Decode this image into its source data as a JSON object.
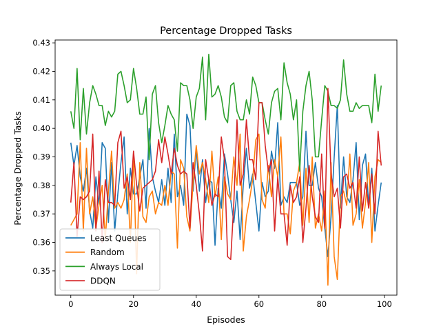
{
  "chart_data": {
    "type": "line",
    "title": "Percentage Dropped Tasks",
    "xlabel": "Episodes",
    "ylabel": "Percentage Dropped Tasks",
    "xlim": [
      -5,
      104
    ],
    "ylim": [
      0.3415,
      0.431
    ],
    "xticks": [
      0,
      20,
      40,
      60,
      80,
      100
    ],
    "yticks": [
      0.35,
      0.36,
      0.37,
      0.38,
      0.39,
      0.4,
      0.41,
      0.42,
      0.43
    ],
    "ytick_labels": [
      "0.35",
      "0.36",
      "0.37",
      "0.38",
      "0.39",
      "0.40",
      "0.41",
      "0.42",
      "0.43"
    ],
    "grid": false,
    "legend_position": "lower-left",
    "x": [
      0,
      1,
      2,
      3,
      4,
      5,
      6,
      7,
      8,
      9,
      10,
      11,
      12,
      13,
      14,
      15,
      16,
      17,
      18,
      19,
      20,
      21,
      22,
      23,
      24,
      25,
      26,
      27,
      28,
      29,
      30,
      31,
      32,
      33,
      34,
      35,
      36,
      37,
      38,
      39,
      40,
      41,
      42,
      43,
      44,
      45,
      46,
      47,
      48,
      49,
      50,
      51,
      52,
      53,
      54,
      55,
      56,
      57,
      58,
      59,
      60,
      61,
      62,
      63,
      64,
      65,
      66,
      67,
      68,
      69,
      70,
      71,
      72,
      73,
      74,
      75,
      76,
      77,
      78,
      79,
      80,
      81,
      82,
      83,
      84,
      85,
      86,
      87,
      88,
      89,
      90,
      91,
      92,
      93,
      94,
      95,
      96,
      97,
      98,
      99
    ],
    "series": [
      {
        "name": "Least Queues",
        "color": "#1f77b4",
        "values": [
          0.395,
          0.387,
          0.394,
          0.383,
          0.378,
          0.386,
          0.371,
          0.365,
          0.383,
          0.373,
          0.395,
          0.393,
          0.367,
          0.388,
          0.364,
          0.377,
          0.388,
          0.397,
          0.37,
          0.386,
          0.377,
          0.377,
          0.383,
          0.389,
          0.372,
          0.4,
          0.383,
          0.378,
          0.374,
          0.382,
          0.373,
          0.386,
          0.374,
          0.398,
          0.376,
          0.38,
          0.373,
          0.405,
          0.401,
          0.378,
          0.393,
          0.378,
          0.389,
          0.374,
          0.382,
          0.381,
          0.359,
          0.379,
          0.372,
          0.391,
          0.384,
          0.375,
          0.367,
          0.378,
          0.361,
          0.38,
          0.393,
          0.379,
          0.384,
          0.374,
          0.364,
          0.381,
          0.376,
          0.378,
          0.392,
          0.386,
          0.402,
          0.373,
          0.376,
          0.374,
          0.381,
          0.381,
          0.381,
          0.373,
          0.376,
          0.399,
          0.38,
          0.38,
          0.388,
          0.379,
          0.376,
          0.365,
          0.355,
          0.369,
          0.39,
          0.408,
          0.372,
          0.39,
          0.376,
          0.374,
          0.382,
          0.395,
          0.368,
          0.387,
          0.391,
          0.373,
          0.386,
          0.364,
          0.373,
          0.381
        ]
      },
      {
        "name": "Random",
        "color": "#ff7f0e",
        "values": [
          0.366,
          0.368,
          0.37,
          0.395,
          0.364,
          0.393,
          0.37,
          0.376,
          0.365,
          0.373,
          0.38,
          0.361,
          0.378,
          0.392,
          0.372,
          0.374,
          0.372,
          0.375,
          0.384,
          0.36,
          0.391,
          0.349,
          0.388,
          0.369,
          0.367,
          0.376,
          0.378,
          0.37,
          0.374,
          0.373,
          0.38,
          0.373,
          0.385,
          0.384,
          0.358,
          0.389,
          0.386,
          0.369,
          0.364,
          0.381,
          0.394,
          0.384,
          0.388,
          0.382,
          0.374,
          0.392,
          0.376,
          0.383,
          0.361,
          0.383,
          0.377,
          0.375,
          0.39,
          0.38,
          0.398,
          0.357,
          0.369,
          0.375,
          0.382,
          0.396,
          0.398,
          0.375,
          0.372,
          0.387,
          0.376,
          0.389,
          0.383,
          0.397,
          0.37,
          0.37,
          0.363,
          0.378,
          0.381,
          0.388,
          0.366,
          0.386,
          0.367,
          0.39,
          0.365,
          0.37,
          0.364,
          0.378,
          0.345,
          0.388,
          0.355,
          0.347,
          0.376,
          0.378,
          0.373,
          0.391,
          0.366,
          0.37,
          0.382,
          0.365,
          0.374,
          0.388,
          0.36,
          0.383,
          0.389,
          0.388
        ]
      },
      {
        "name": "Always Local",
        "color": "#2ca02c",
        "values": [
          0.406,
          0.4,
          0.421,
          0.396,
          0.414,
          0.398,
          0.409,
          0.415,
          0.412,
          0.408,
          0.408,
          0.401,
          0.406,
          0.404,
          0.406,
          0.419,
          0.42,
          0.415,
          0.409,
          0.41,
          0.421,
          0.414,
          0.405,
          0.405,
          0.411,
          0.389,
          0.412,
          0.415,
          0.402,
          0.395,
          0.401,
          0.408,
          0.405,
          0.403,
          0.392,
          0.416,
          0.415,
          0.415,
          0.41,
          0.4,
          0.411,
          0.414,
          0.425,
          0.403,
          0.426,
          0.411,
          0.412,
          0.415,
          0.411,
          0.404,
          0.402,
          0.415,
          0.416,
          0.406,
          0.403,
          0.403,
          0.41,
          0.405,
          0.418,
          0.415,
          0.409,
          0.409,
          0.403,
          0.398,
          0.409,
          0.413,
          0.414,
          0.403,
          0.423,
          0.416,
          0.412,
          0.403,
          0.41,
          0.385,
          0.406,
          0.415,
          0.42,
          0.41,
          0.39,
          0.39,
          0.403,
          0.415,
          0.413,
          0.408,
          0.408,
          0.407,
          0.41,
          0.424,
          0.412,
          0.406,
          0.406,
          0.409,
          0.407,
          0.408,
          0.408,
          0.408,
          0.402,
          0.419,
          0.406,
          0.415
        ]
      },
      {
        "name": "DDQN",
        "color": "#d62728",
        "values": [
          0.374,
          0.388,
          0.362,
          0.376,
          0.375,
          0.376,
          0.378,
          0.398,
          0.364,
          0.385,
          0.36,
          0.382,
          0.374,
          0.374,
          0.373,
          0.395,
          0.399,
          0.379,
          0.383,
          0.375,
          0.392,
          0.38,
          0.371,
          0.379,
          0.38,
          0.381,
          0.382,
          0.385,
          0.396,
          0.388,
          0.397,
          0.391,
          0.384,
          0.393,
          0.387,
          0.384,
          0.385,
          0.384,
          0.365,
          0.388,
          0.38,
          0.37,
          0.357,
          0.389,
          0.382,
          0.373,
          0.377,
          0.376,
          0.397,
          0.389,
          0.355,
          0.354,
          0.374,
          0.403,
          0.38,
          0.384,
          0.403,
          0.389,
          0.389,
          0.382,
          0.409,
          0.409,
          0.394,
          0.385,
          0.389,
          0.364,
          0.383,
          0.37,
          0.37,
          0.359,
          0.38,
          0.374,
          0.376,
          0.383,
          0.36,
          0.372,
          0.387,
          0.376,
          0.369,
          0.367,
          0.391,
          0.365,
          0.414,
          0.384,
          0.376,
          0.379,
          0.365,
          0.383,
          0.384,
          0.379,
          0.381,
          0.372,
          0.39,
          0.371,
          0.381,
          0.372,
          0.384,
          0.37,
          0.399,
          0.387
        ]
      }
    ]
  }
}
